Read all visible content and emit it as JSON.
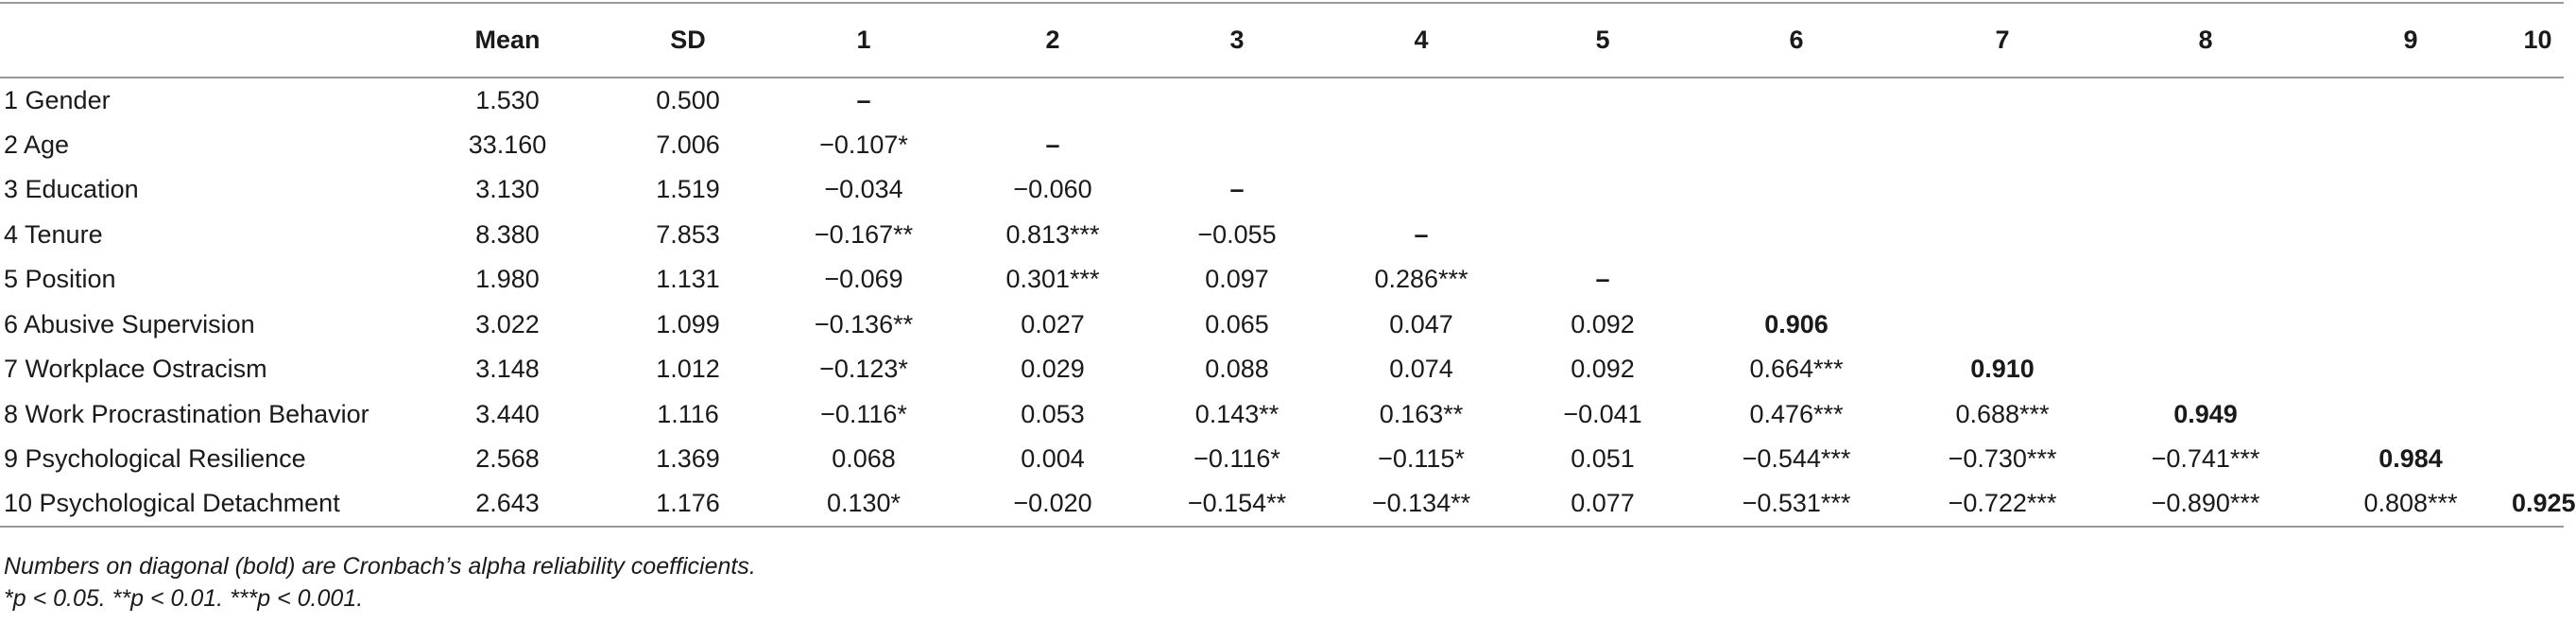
{
  "table": {
    "headers": [
      "",
      "Mean",
      "SD",
      "1",
      "2",
      "3",
      "4",
      "5",
      "6",
      "7",
      "8",
      "9",
      "10"
    ],
    "rows": [
      {
        "variable": "1 Gender",
        "mean": "1.530",
        "sd": "0.500",
        "cells": [
          "–",
          "",
          "",
          "",
          "",
          "",
          "",
          "",
          "",
          ""
        ],
        "diag_index": 0
      },
      {
        "variable": "2 Age",
        "mean": "33.160",
        "sd": "7.006",
        "cells": [
          "−0.107*",
          "–",
          "",
          "",
          "",
          "",
          "",
          "",
          "",
          ""
        ],
        "diag_index": 1
      },
      {
        "variable": "3 Education",
        "mean": "3.130",
        "sd": "1.519",
        "cells": [
          "−0.034",
          "−0.060",
          "–",
          "",
          "",
          "",
          "",
          "",
          "",
          ""
        ],
        "diag_index": 2
      },
      {
        "variable": "4 Tenure",
        "mean": "8.380",
        "sd": "7.853",
        "cells": [
          "−0.167**",
          "0.813***",
          "−0.055",
          "–",
          "",
          "",
          "",
          "",
          "",
          ""
        ],
        "diag_index": 3
      },
      {
        "variable": "5 Position",
        "mean": "1.980",
        "sd": "1.131",
        "cells": [
          "−0.069",
          "0.301***",
          "0.097",
          "0.286***",
          "–",
          "",
          "",
          "",
          "",
          ""
        ],
        "diag_index": 4
      },
      {
        "variable": "6 Abusive Supervision",
        "mean": "3.022",
        "sd": "1.099",
        "cells": [
          "−0.136**",
          "0.027",
          "0.065",
          "0.047",
          "0.092",
          "0.906",
          "",
          "",
          "",
          ""
        ],
        "diag_index": 5
      },
      {
        "variable": "7 Workplace Ostracism",
        "mean": "3.148",
        "sd": "1.012",
        "cells": [
          "−0.123*",
          "0.029",
          "0.088",
          "0.074",
          "0.092",
          "0.664***",
          "0.910",
          "",
          "",
          ""
        ],
        "diag_index": 6
      },
      {
        "variable": "8 Work Procrastination Behavior",
        "mean": "3.440",
        "sd": "1.116",
        "cells": [
          "−0.116*",
          "0.053",
          "0.143**",
          "0.163**",
          "−0.041",
          "0.476***",
          "0.688***",
          "0.949",
          "",
          ""
        ],
        "diag_index": 7
      },
      {
        "variable": "9 Psychological Resilience",
        "mean": "2.568",
        "sd": "1.369",
        "cells": [
          "0.068",
          "0.004",
          "−0.116*",
          "−0.115*",
          "0.051",
          "−0.544***",
          "−0.730***",
          "−0.741***",
          "0.984",
          ""
        ],
        "diag_index": 8
      },
      {
        "variable": "10 Psychological Detachment",
        "mean": "2.643",
        "sd": "1.176",
        "cells": [
          "0.130*",
          "−0.020",
          "−0.154**",
          "−0.134**",
          "0.077",
          "−0.531***",
          "−0.722***",
          "−0.890***",
          "0.808***",
          "0.925"
        ],
        "diag_index": 9
      }
    ]
  },
  "notes": {
    "line1": "Numbers on diagonal (bold) are Cronbach’s alpha reliability coefficients.",
    "line2": "*p < 0.05. **p < 0.01. ***p < 0.001."
  }
}
